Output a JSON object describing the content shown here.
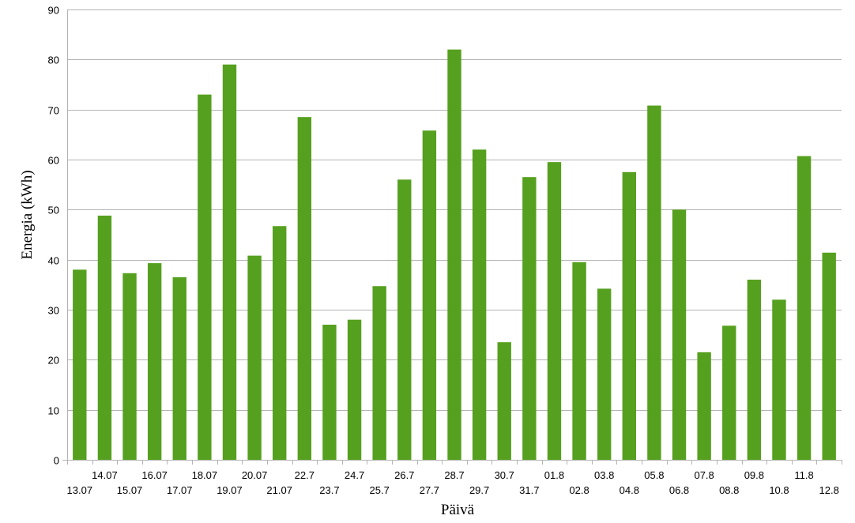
{
  "chart_data": {
    "type": "bar",
    "title": "",
    "xlabel": "Päivä",
    "ylabel": "Energia (kWh)",
    "ylim": [
      0,
      90
    ],
    "y_ticks": [
      0,
      10,
      20,
      30,
      40,
      50,
      60,
      70,
      80,
      90
    ],
    "grid": true,
    "legend": "none",
    "bar_color": "#55a01e",
    "grid_color": "#b3b3b3",
    "categories": [
      "13.07",
      "14.07",
      "15.07",
      "16.07",
      "17.07",
      "18.07",
      "19.07",
      "20.07",
      "21.07",
      "22.7",
      "23.7",
      "24.7",
      "25.7",
      "26.7",
      "27.7",
      "28.7",
      "29.7",
      "30.7",
      "31.7",
      "01.8",
      "02.8",
      "03.8",
      "04.8",
      "05.8",
      "06.8",
      "07.8",
      "08.8",
      "09.8",
      "10.8",
      "11.8",
      "12.8"
    ],
    "values": [
      38.0,
      48.8,
      37.3,
      39.3,
      36.5,
      73.0,
      79.0,
      40.8,
      46.7,
      68.5,
      27.0,
      28.0,
      34.7,
      56.0,
      65.8,
      82.0,
      62.0,
      23.5,
      56.5,
      59.5,
      39.5,
      34.2,
      57.5,
      70.8,
      50.0,
      21.5,
      26.8,
      36.0,
      32.0,
      60.7,
      41.4
    ]
  }
}
